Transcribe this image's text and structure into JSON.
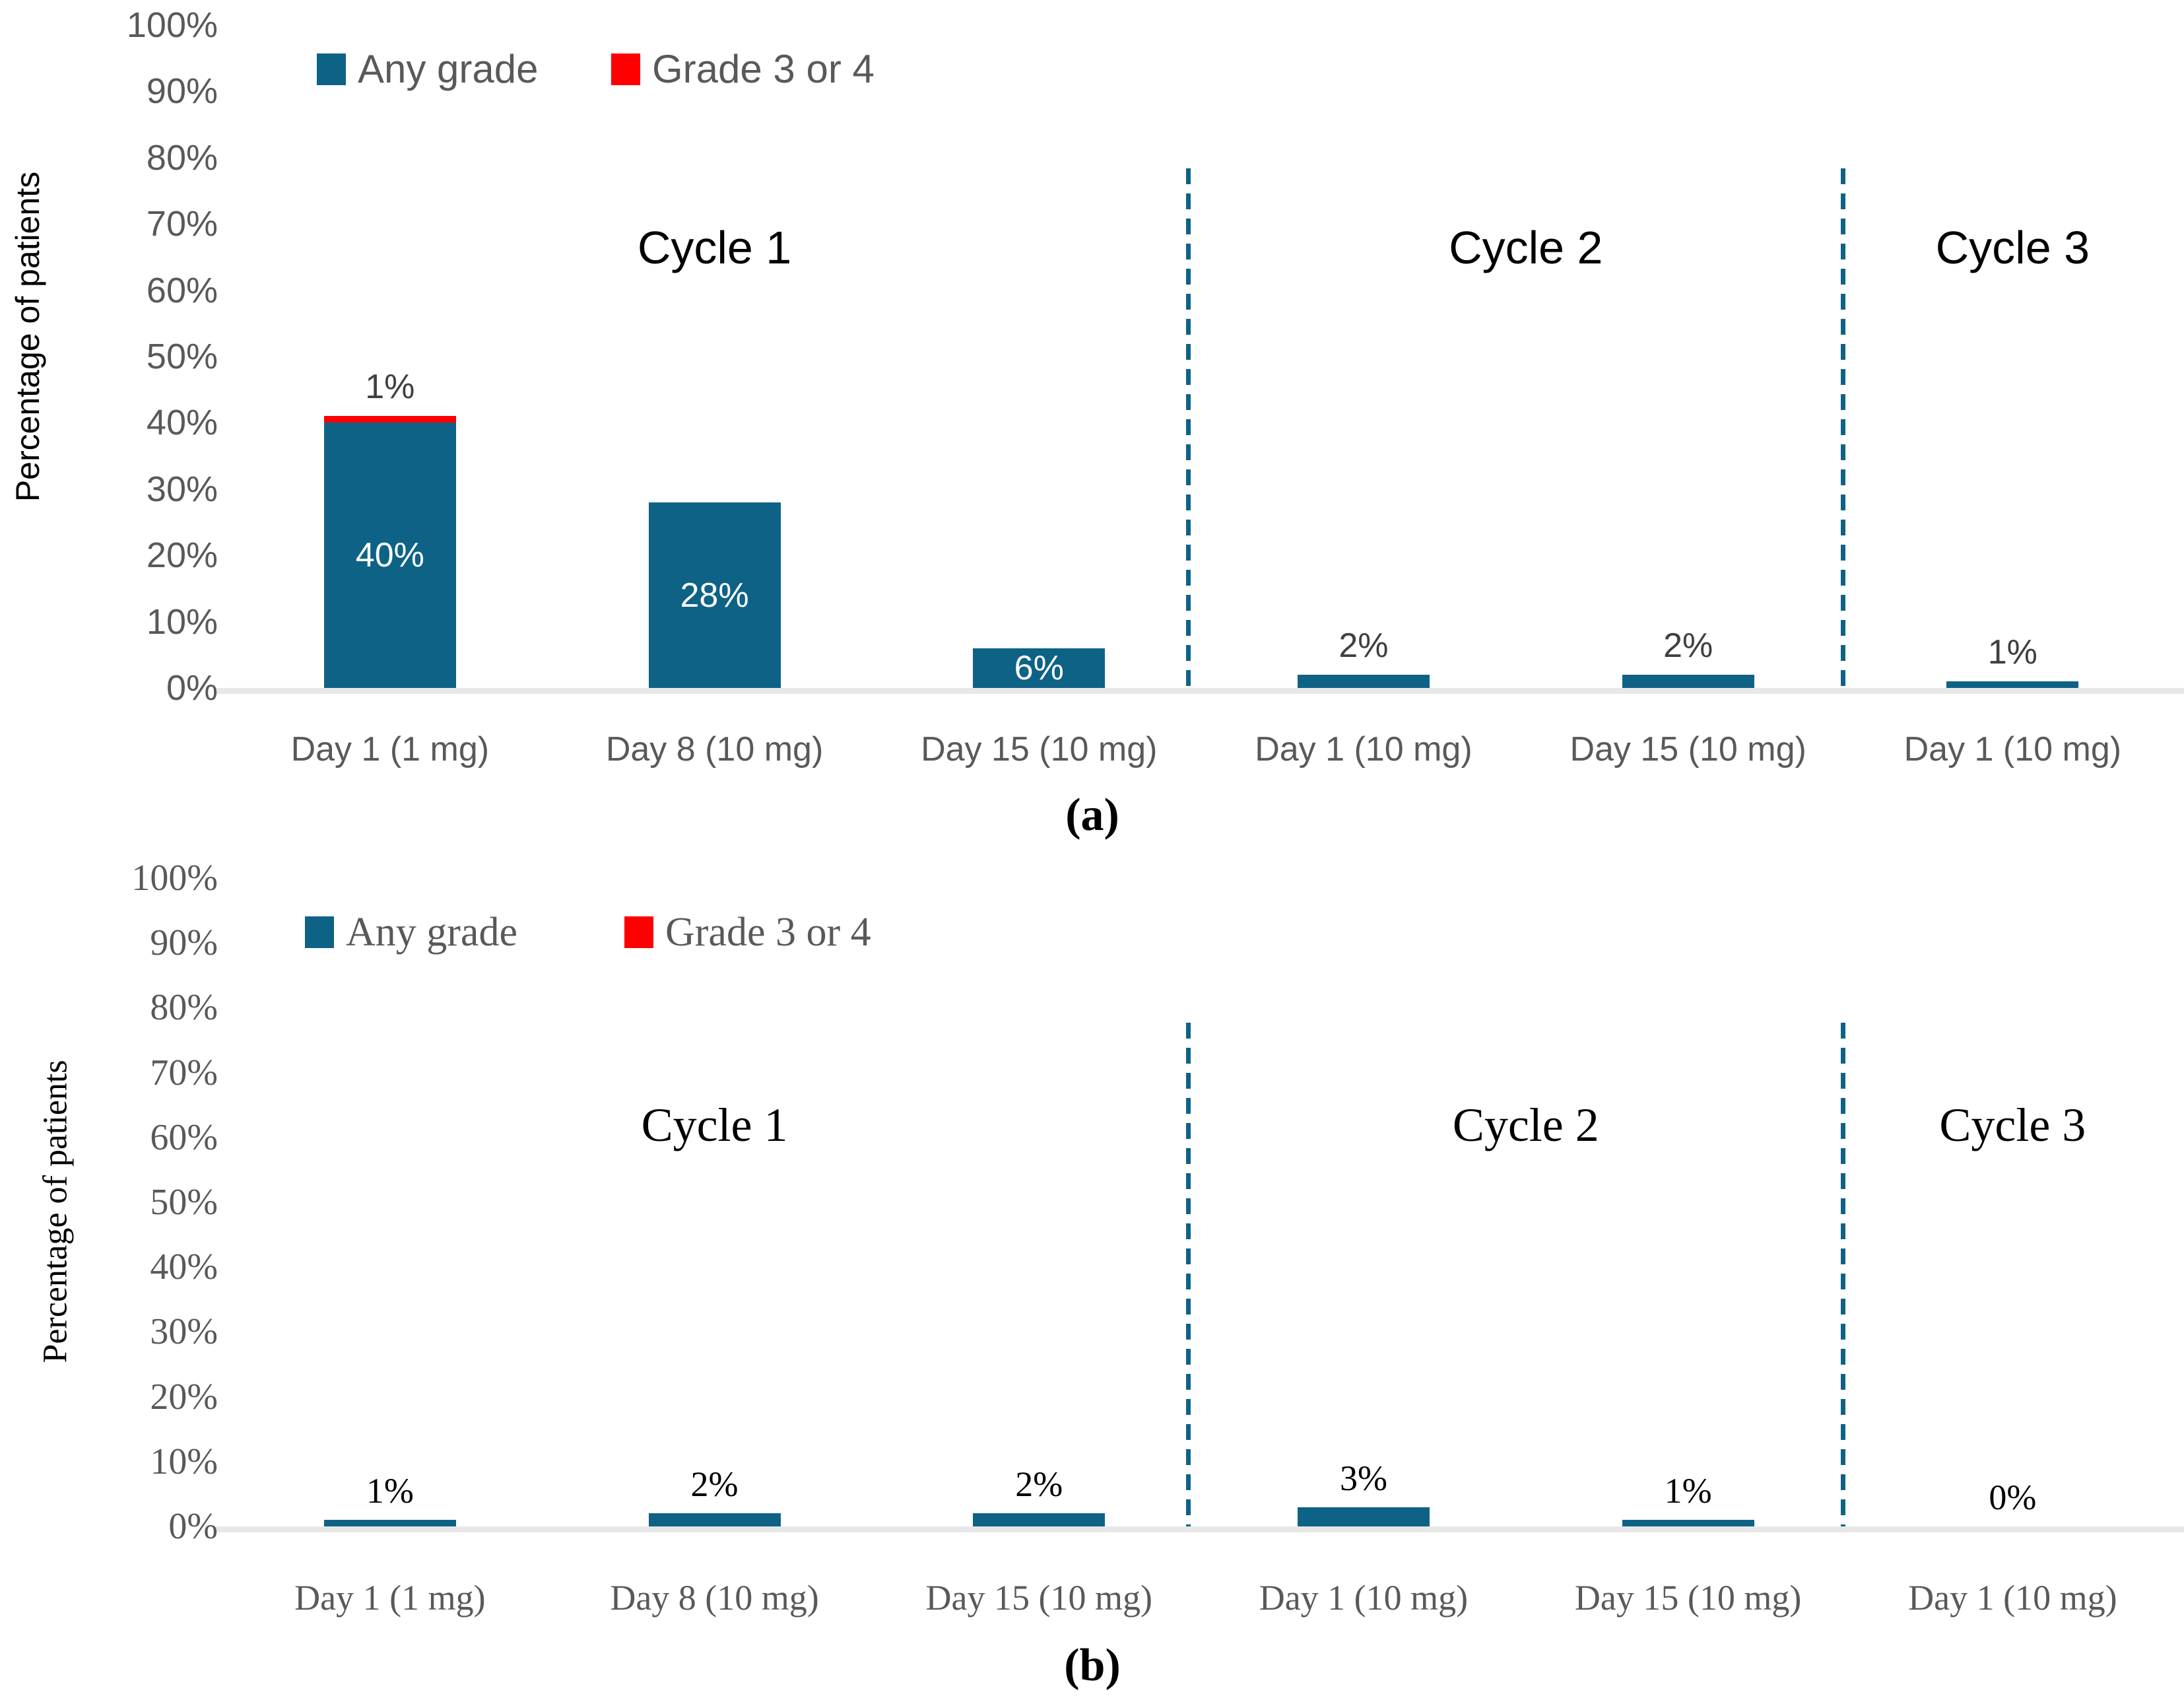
{
  "colors": {
    "any_grade": "#0E6286",
    "grade_3_or_4": "#FF0000",
    "tick_text": "#595959",
    "category_text": "#595959",
    "axis_line": "#E8E8E8",
    "cycle_title_text": "#000000",
    "label_inside": "#FFFFFF",
    "label_above_a": "#3F3F3F",
    "label_above_b": "#000000"
  },
  "chart_data": [
    {
      "panel": "a",
      "type": "bar",
      "caption": "(a)",
      "ylabel": "Percentage of patients",
      "ylim": [
        0,
        100
      ],
      "ytick_step": 10,
      "grid": "off",
      "legend_position": "top-left-inside",
      "yticks": [
        "100%",
        "90%",
        "80%",
        "70%",
        "60%",
        "50%",
        "40%",
        "30%",
        "20%",
        "10%",
        "0%"
      ],
      "legend": [
        {
          "name": "Any grade",
          "color": "#0E6286"
        },
        {
          "name": "Grade 3 or 4",
          "color": "#FF0000"
        }
      ],
      "groups": [
        {
          "title": "Cycle 1",
          "categories": [
            0,
            1,
            2
          ]
        },
        {
          "title": "Cycle 2",
          "categories": [
            3,
            4
          ]
        },
        {
          "title": "Cycle 3",
          "categories": [
            5
          ]
        }
      ],
      "separators_after_category": [
        2,
        4
      ],
      "categories": [
        "Day 1 (1 mg)",
        "Day 8 (10 mg)",
        "Day 15 (10 mg)",
        "Day 1 (10 mg)",
        "Day 15 (10 mg)",
        "Day 1 (10 mg)"
      ],
      "series": [
        {
          "name": "Any grade",
          "values": [
            40,
            28,
            6,
            2,
            2,
            1
          ]
        },
        {
          "name": "Grade 3 or 4",
          "values": [
            1,
            0,
            0,
            0,
            0,
            0
          ]
        }
      ],
      "bars": [
        {
          "category": "Day 1 (1 mg)",
          "any_grade": 40,
          "grade_3_or_4": 1,
          "label_above": "1%",
          "label_inside": "40%"
        },
        {
          "category": "Day 8 (10 mg)",
          "any_grade": 28,
          "grade_3_or_4": 0,
          "label_above": null,
          "label_inside": "28%"
        },
        {
          "category": "Day 15 (10 mg)",
          "any_grade": 6,
          "grade_3_or_4": 0,
          "label_above": null,
          "label_inside": "6%"
        },
        {
          "category": "Day 1 (10 mg)",
          "any_grade": 2,
          "grade_3_or_4": 0,
          "label_above": "2%",
          "label_inside": null
        },
        {
          "category": "Day 15 (10 mg)",
          "any_grade": 2,
          "grade_3_or_4": 0,
          "label_above": "2%",
          "label_inside": null
        },
        {
          "category": "Day 1 (10 mg)",
          "any_grade": 1,
          "grade_3_or_4": 0,
          "label_above": "1%",
          "label_inside": null
        }
      ]
    },
    {
      "panel": "b",
      "type": "bar",
      "caption": "(b)",
      "ylabel": "Percentage of patients",
      "ylim": [
        0,
        100
      ],
      "ytick_step": 10,
      "grid": "off",
      "legend_position": "top-left-inside",
      "yticks": [
        "100%",
        "90%",
        "80%",
        "70%",
        "60%",
        "50%",
        "40%",
        "30%",
        "20%",
        "10%",
        "0%"
      ],
      "legend": [
        {
          "name": "Any grade",
          "color": "#0E6286"
        },
        {
          "name": "Grade 3 or 4",
          "color": "#FF0000"
        }
      ],
      "groups": [
        {
          "title": "Cycle 1",
          "categories": [
            0,
            1,
            2
          ]
        },
        {
          "title": "Cycle 2",
          "categories": [
            3,
            4
          ]
        },
        {
          "title": "Cycle 3",
          "categories": [
            5
          ]
        }
      ],
      "separators_after_category": [
        2,
        4
      ],
      "categories": [
        "Day 1 (1 mg)",
        "Day 8 (10 mg)",
        "Day 15 (10 mg)",
        "Day 1 (10 mg)",
        "Day 15 (10 mg)",
        "Day 1 (10 mg)"
      ],
      "series": [
        {
          "name": "Any grade",
          "values": [
            1,
            2,
            2,
            3,
            1,
            0
          ]
        },
        {
          "name": "Grade 3 or 4",
          "values": [
            0,
            0,
            0,
            0,
            0,
            0
          ]
        }
      ],
      "bars": [
        {
          "category": "Day 1 (1 mg)",
          "any_grade": 1,
          "grade_3_or_4": 0,
          "label_above": "1%",
          "label_inside": null
        },
        {
          "category": "Day 8 (10 mg)",
          "any_grade": 2,
          "grade_3_or_4": 0,
          "label_above": "2%",
          "label_inside": null
        },
        {
          "category": "Day 15 (10 mg)",
          "any_grade": 2,
          "grade_3_or_4": 0,
          "label_above": "2%",
          "label_inside": null
        },
        {
          "category": "Day 1 (10 mg)",
          "any_grade": 3,
          "grade_3_or_4": 0,
          "label_above": "3%",
          "label_inside": null
        },
        {
          "category": "Day 15 (10 mg)",
          "any_grade": 1,
          "grade_3_or_4": 0,
          "label_above": "1%",
          "label_inside": null
        },
        {
          "category": "Day 1 (10 mg)",
          "any_grade": 0,
          "grade_3_or_4": 0,
          "label_above": "0%",
          "label_inside": null
        }
      ]
    }
  ]
}
